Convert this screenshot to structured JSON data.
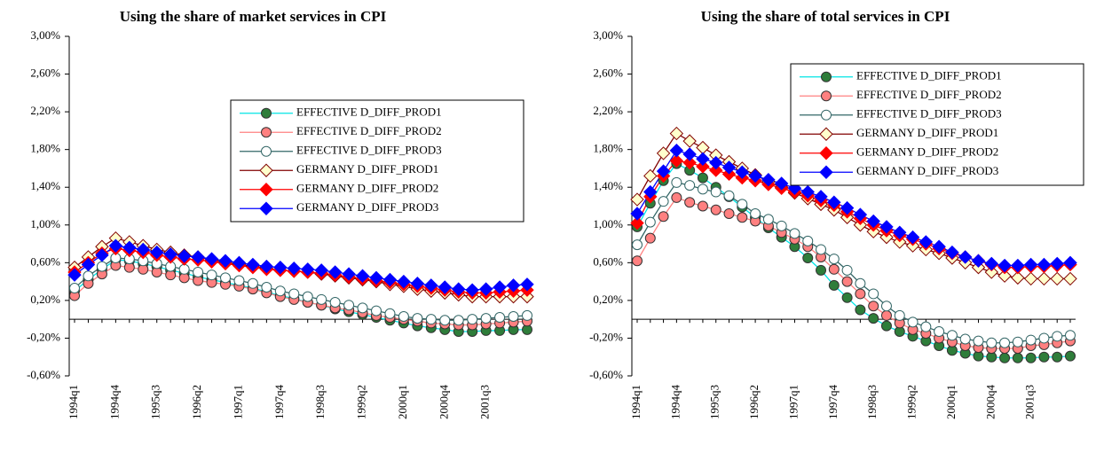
{
  "chart_data": [
    {
      "type": "line",
      "title": "Using the share of market services in CPI",
      "categories": [
        "1994q1",
        null,
        null,
        "1994q4",
        null,
        null,
        "1995q3",
        null,
        null,
        "1996q2",
        null,
        null,
        "1997q1",
        null,
        null,
        "1997q4",
        null,
        null,
        "1998q3",
        null,
        null,
        "1999q2",
        null,
        null,
        "2000q1",
        null,
        null,
        "2000q4",
        null,
        null,
        "2001q3",
        null,
        null,
        null
      ],
      "ylim": [
        -0.6,
        3.0
      ],
      "yticks": [
        {
          "value": -0.6,
          "label": "-0,60%"
        },
        {
          "value": -0.2,
          "label": "-0,20%"
        },
        {
          "value": 0.2,
          "label": "0,20%"
        },
        {
          "value": 0.6,
          "label": "0,60%"
        },
        {
          "value": 1.0,
          "label": "1,00%"
        },
        {
          "value": 1.4,
          "label": "1,40%"
        },
        {
          "value": 1.8,
          "label": "1,80%"
        },
        {
          "value": 2.2,
          "label": "2,20%"
        },
        {
          "value": 2.6,
          "label": "2,60%"
        },
        {
          "value": 3.0,
          "label": "3,00%"
        }
      ],
      "legend": "upper right",
      "series": [
        {
          "name": "EFFECTIVE D_DIFF_PROD1",
          "color": "#00e5e5",
          "marker": "circle",
          "marker_fill": "#2e7d3a",
          "values": [
            0.3,
            0.42,
            0.53,
            0.63,
            0.62,
            0.59,
            0.56,
            0.52,
            0.49,
            0.45,
            0.42,
            0.39,
            0.36,
            0.33,
            0.29,
            0.25,
            0.22,
            0.18,
            0.15,
            0.11,
            0.08,
            0.05,
            0.02,
            -0.01,
            -0.04,
            -0.07,
            -0.09,
            -0.11,
            -0.13,
            -0.13,
            -0.12,
            -0.12,
            -0.11,
            -0.11
          ]
        },
        {
          "name": "EFFECTIVE D_DIFF_PROD2",
          "color": "#ff8080",
          "marker": "circle",
          "marker_fill": "#ff8080",
          "values": [
            0.25,
            0.38,
            0.48,
            0.57,
            0.55,
            0.53,
            0.5,
            0.47,
            0.44,
            0.41,
            0.39,
            0.37,
            0.35,
            0.32,
            0.28,
            0.24,
            0.21,
            0.18,
            0.15,
            0.12,
            0.1,
            0.07,
            0.04,
            0.02,
            0.0,
            -0.02,
            -0.04,
            -0.05,
            -0.06,
            -0.06,
            -0.05,
            -0.04,
            -0.03,
            -0.02
          ]
        },
        {
          "name": "EFFECTIVE D_DIFF_PROD3",
          "color": "#336666",
          "marker": "circle",
          "marker_fill": "#ffffff",
          "values": [
            0.33,
            0.46,
            0.56,
            0.65,
            0.64,
            0.62,
            0.59,
            0.56,
            0.53,
            0.5,
            0.47,
            0.44,
            0.41,
            0.38,
            0.34,
            0.3,
            0.27,
            0.24,
            0.21,
            0.18,
            0.15,
            0.12,
            0.09,
            0.06,
            0.03,
            0.01,
            0.0,
            -0.01,
            -0.01,
            0.0,
            0.01,
            0.02,
            0.03,
            0.04
          ]
        },
        {
          "name": "GERMANY D_DIFF_PROD1",
          "color": "#800000",
          "marker": "diamond",
          "marker_fill": "#ffffcc",
          "values": [
            0.55,
            0.66,
            0.77,
            0.86,
            0.82,
            0.78,
            0.74,
            0.71,
            0.68,
            0.66,
            0.63,
            0.6,
            0.58,
            0.56,
            0.54,
            0.52,
            0.51,
            0.5,
            0.48,
            0.46,
            0.44,
            0.42,
            0.4,
            0.37,
            0.35,
            0.32,
            0.3,
            0.28,
            0.26,
            0.24,
            0.24,
            0.24,
            0.24,
            0.24
          ]
        },
        {
          "name": "GERMANY D_DIFF_PROD2",
          "color": "#ff0000",
          "marker": "diamond",
          "marker_fill": "#ff0000",
          "values": [
            0.5,
            0.6,
            0.7,
            0.75,
            0.73,
            0.71,
            0.68,
            0.66,
            0.64,
            0.63,
            0.61,
            0.59,
            0.57,
            0.55,
            0.53,
            0.52,
            0.51,
            0.5,
            0.49,
            0.47,
            0.45,
            0.43,
            0.41,
            0.39,
            0.37,
            0.35,
            0.33,
            0.31,
            0.29,
            0.28,
            0.28,
            0.29,
            0.3,
            0.31
          ]
        },
        {
          "name": "GERMANY D_DIFF_PROD3",
          "color": "#0000ff",
          "marker": "diamond",
          "marker_fill": "#0000ff",
          "values": [
            0.47,
            0.58,
            0.68,
            0.78,
            0.76,
            0.74,
            0.71,
            0.69,
            0.67,
            0.66,
            0.64,
            0.62,
            0.6,
            0.58,
            0.56,
            0.55,
            0.54,
            0.53,
            0.52,
            0.5,
            0.48,
            0.46,
            0.44,
            0.42,
            0.4,
            0.38,
            0.36,
            0.34,
            0.32,
            0.31,
            0.32,
            0.34,
            0.36,
            0.37
          ]
        }
      ]
    },
    {
      "type": "line",
      "title": "Using the share of total services in CPI",
      "categories": [
        "1994q1",
        null,
        null,
        "1994q4",
        null,
        null,
        "1995q3",
        null,
        null,
        "1996q2",
        null,
        null,
        "1997q1",
        null,
        null,
        "1997q4",
        null,
        null,
        "1998q3",
        null,
        null,
        "1999q2",
        null,
        null,
        "2000q1",
        null,
        null,
        "2000q4",
        null,
        null,
        "2001q3",
        null,
        null,
        null
      ],
      "ylim": [
        -0.6,
        3.0
      ],
      "yticks": [
        {
          "value": -0.6,
          "label": "-0,60%"
        },
        {
          "value": -0.2,
          "label": "-0,20%"
        },
        {
          "value": 0.2,
          "label": "0,20%"
        },
        {
          "value": 0.6,
          "label": "0,60%"
        },
        {
          "value": 1.0,
          "label": "1,00%"
        },
        {
          "value": 1.4,
          "label": "1,40%"
        },
        {
          "value": 1.8,
          "label": "1,80%"
        },
        {
          "value": 2.2,
          "label": "2,20%"
        },
        {
          "value": 2.6,
          "label": "2,60%"
        },
        {
          "value": 3.0,
          "label": "3,00%"
        }
      ],
      "legend": "upper right",
      "series": [
        {
          "name": "EFFECTIVE D_DIFF_PROD1",
          "color": "#00e5e5",
          "marker": "circle",
          "marker_fill": "#2e7d3a",
          "values": [
            0.98,
            1.23,
            1.47,
            1.65,
            1.58,
            1.5,
            1.4,
            1.3,
            1.19,
            1.08,
            0.97,
            0.87,
            0.77,
            0.65,
            0.52,
            0.36,
            0.23,
            0.1,
            0.01,
            -0.07,
            -0.13,
            -0.18,
            -0.23,
            -0.28,
            -0.33,
            -0.36,
            -0.39,
            -0.4,
            -0.41,
            -0.41,
            -0.41,
            -0.4,
            -0.4,
            -0.39
          ]
        },
        {
          "name": "EFFECTIVE D_DIFF_PROD2",
          "color": "#ff8080",
          "marker": "circle",
          "marker_fill": "#ff8080",
          "values": [
            0.62,
            0.86,
            1.09,
            1.29,
            1.24,
            1.2,
            1.16,
            1.12,
            1.08,
            1.04,
            0.99,
            0.92,
            0.85,
            0.77,
            0.66,
            0.53,
            0.4,
            0.27,
            0.14,
            0.04,
            -0.04,
            -0.11,
            -0.15,
            -0.2,
            -0.24,
            -0.28,
            -0.3,
            -0.31,
            -0.31,
            -0.31,
            -0.28,
            -0.27,
            -0.25,
            -0.23
          ]
        },
        {
          "name": "EFFECTIVE D_DIFF_PROD3",
          "color": "#336666",
          "marker": "circle",
          "marker_fill": "#ffffff",
          "values": [
            0.79,
            1.03,
            1.25,
            1.45,
            1.42,
            1.38,
            1.35,
            1.31,
            1.22,
            1.12,
            1.06,
            0.99,
            0.91,
            0.83,
            0.74,
            0.64,
            0.52,
            0.38,
            0.27,
            0.14,
            0.04,
            -0.03,
            -0.08,
            -0.13,
            -0.17,
            -0.21,
            -0.23,
            -0.25,
            -0.25,
            -0.24,
            -0.22,
            -0.2,
            -0.18,
            -0.17
          ]
        },
        {
          "name": "GERMANY D_DIFF_PROD1",
          "color": "#800000",
          "marker": "diamond",
          "marker_fill": "#ffffcc",
          "values": [
            1.27,
            1.52,
            1.76,
            1.97,
            1.89,
            1.82,
            1.74,
            1.67,
            1.6,
            1.53,
            1.46,
            1.4,
            1.34,
            1.28,
            1.22,
            1.16,
            1.08,
            1.0,
            0.93,
            0.87,
            0.82,
            0.78,
            0.74,
            0.7,
            0.65,
            0.6,
            0.55,
            0.5,
            0.46,
            0.44,
            0.43,
            0.43,
            0.43,
            0.43
          ]
        },
        {
          "name": "GERMANY D_DIFF_PROD2",
          "color": "#ff0000",
          "marker": "diamond",
          "marker_fill": "#ff0000",
          "values": [
            1.02,
            1.3,
            1.52,
            1.68,
            1.66,
            1.62,
            1.58,
            1.54,
            1.5,
            1.47,
            1.43,
            1.39,
            1.35,
            1.31,
            1.26,
            1.21,
            1.14,
            1.07,
            1.0,
            0.94,
            0.89,
            0.85,
            0.8,
            0.75,
            0.7,
            0.66,
            0.62,
            0.58,
            0.55,
            0.55,
            0.56,
            0.56,
            0.57,
            0.58
          ]
        },
        {
          "name": "GERMANY D_DIFF_PROD3",
          "color": "#0000ff",
          "marker": "diamond",
          "marker_fill": "#0000ff",
          "values": [
            1.12,
            1.35,
            1.57,
            1.79,
            1.75,
            1.7,
            1.66,
            1.61,
            1.56,
            1.52,
            1.48,
            1.44,
            1.39,
            1.35,
            1.3,
            1.24,
            1.18,
            1.11,
            1.04,
            0.98,
            0.92,
            0.87,
            0.82,
            0.77,
            0.71,
            0.66,
            0.62,
            0.59,
            0.57,
            0.57,
            0.58,
            0.58,
            0.59,
            0.6
          ]
        }
      ]
    }
  ]
}
